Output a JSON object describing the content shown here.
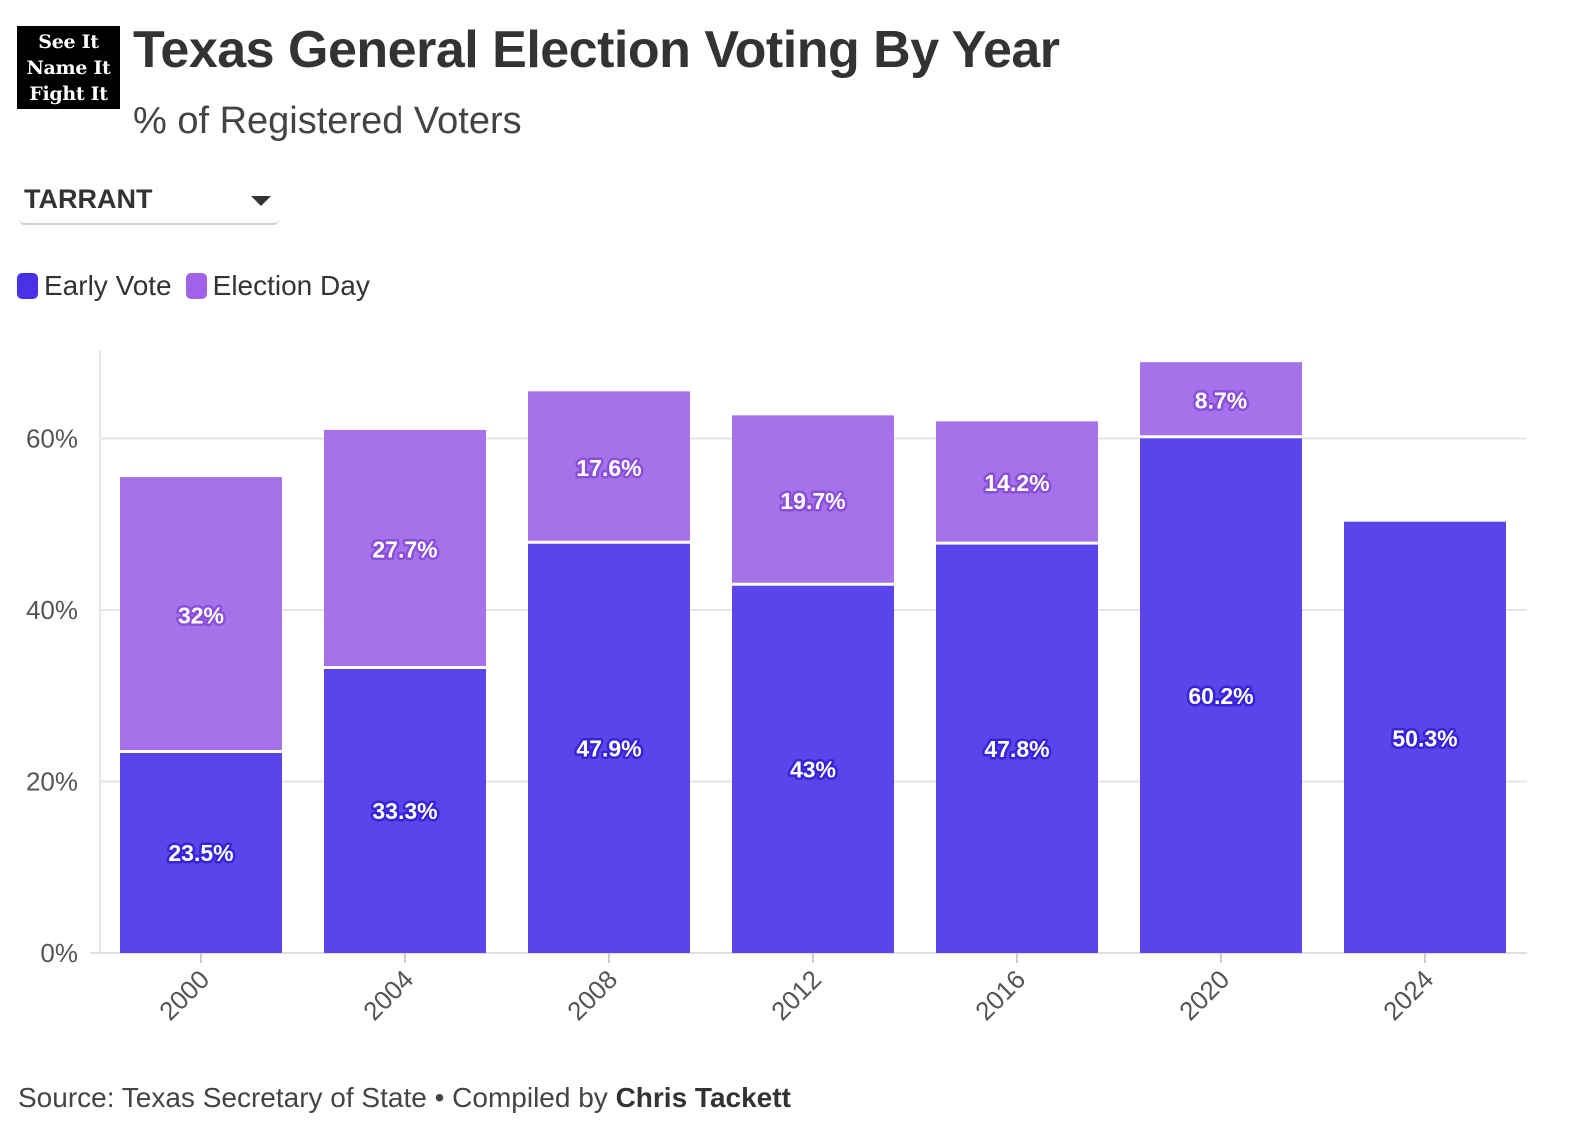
{
  "logo": {
    "lines": [
      "See It",
      "Name It",
      "Fight It"
    ]
  },
  "header": {
    "title": "Texas General Election Voting By Year",
    "subtitle": "% of Registered Voters"
  },
  "filter": {
    "selected": "TARRANT"
  },
  "legend": {
    "early": {
      "label": "Early Vote",
      "color": "#4a31e8"
    },
    "eday": {
      "label": "Election Day",
      "color": "#9f62e9"
    }
  },
  "chart_data": {
    "type": "bar",
    "stacked": true,
    "categories": [
      "2000",
      "2004",
      "2008",
      "2012",
      "2016",
      "2020",
      "2024"
    ],
    "series": [
      {
        "name": "Early Vote",
        "color": "#5b44ea",
        "values": [
          23.5,
          33.3,
          47.9,
          43,
          47.8,
          60.2,
          50.3
        ]
      },
      {
        "name": "Election Day",
        "color": "#a572ea",
        "values": [
          32,
          27.7,
          17.6,
          19.7,
          14.2,
          8.7,
          null
        ]
      }
    ],
    "data_labels": {
      "Early Vote": [
        "23.5%",
        "33.3%",
        "47.9%",
        "43%",
        "47.8%",
        "60.2%",
        "50.3%"
      ],
      "Election Day": [
        "32%",
        "27.7%",
        "17.6%",
        "19.7%",
        "14.2%",
        "8.7%",
        ""
      ]
    },
    "ylim": [
      0,
      70
    ],
    "yticks": [
      0,
      20,
      40,
      60
    ],
    "ytick_labels": [
      "0%",
      "20%",
      "40%",
      "60%"
    ],
    "grid": true,
    "legend_position": "top-left",
    "xlabel": "",
    "ylabel": ""
  },
  "footer": {
    "source_prefix": "Source: Texas Secretary of State • Compiled by ",
    "author": "Chris Tackett"
  }
}
